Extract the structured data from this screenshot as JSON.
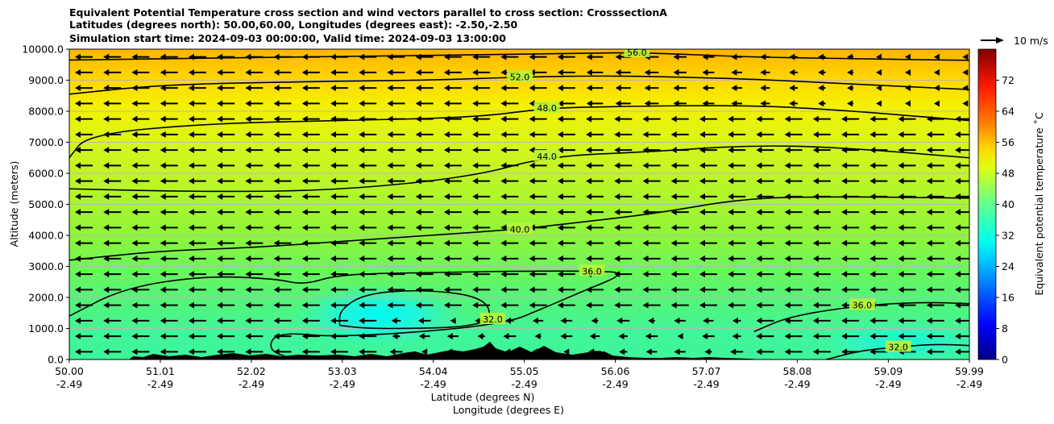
{
  "title": {
    "line1": "Equivalent Potential Temperature cross section and wind vectors parallel to cross section: CrosssectionA",
    "line2": "Latitudes (degrees north): 50.00,60.00, Longitudes (degrees east): -2.50,-2.50",
    "line3": "Simulation start time: 2024-09-03 00:00:00, Valid time: 2024-09-03 13:00:00"
  },
  "wind_key_label": "10 m/s",
  "colorbar": {
    "label": "Equivalent potential temperature ˚C",
    "ticks": [
      "0",
      "8",
      "16",
      "24",
      "32",
      "40",
      "48",
      "56",
      "64",
      "72"
    ],
    "range": [
      0,
      80
    ]
  },
  "chart_data": {
    "type": "heatmap",
    "title": "Equivalent Potential Temperature cross section and wind vectors parallel to cross section: CrosssectionA",
    "xlabel_lat": "Latitude (degrees N)",
    "xlabel_lon": "Longitude (degrees E)",
    "ylabel": "Altitude (meters)",
    "xlim": [
      50.0,
      59.99
    ],
    "ylim": [
      0,
      10000
    ],
    "y_ticks": [
      "0.0",
      "1000.0",
      "2000.0",
      "3000.0",
      "4000.0",
      "5000.0",
      "6000.0",
      "7000.0",
      "8000.0",
      "9000.0",
      "10000.0"
    ],
    "x_ticks": [
      {
        "lat": "50.00",
        "lon": "-2.49"
      },
      {
        "lat": "51.01",
        "lon": "-2.49"
      },
      {
        "lat": "52.02",
        "lon": "-2.49"
      },
      {
        "lat": "53.03",
        "lon": "-2.49"
      },
      {
        "lat": "54.04",
        "lon": "-2.49"
      },
      {
        "lat": "55.05",
        "lon": "-2.49"
      },
      {
        "lat": "56.06",
        "lon": "-2.49"
      },
      {
        "lat": "57.07",
        "lon": "-2.49"
      },
      {
        "lat": "58.08",
        "lon": "-2.49"
      },
      {
        "lat": "59.09",
        "lon": "-2.49"
      },
      {
        "lat": "59.99",
        "lon": "-2.49"
      }
    ],
    "horizontal_gridlines": true,
    "contour_levels": [
      32,
      36,
      40,
      44,
      48,
      52,
      56
    ],
    "contours": [
      {
        "level": 56,
        "label": "56.0",
        "points": [
          [
            50.0,
            9650
          ],
          [
            52.5,
            9750
          ],
          [
            55.5,
            9850
          ],
          [
            56.3,
            9900
          ],
          [
            57.5,
            9750
          ],
          [
            58.5,
            9700
          ],
          [
            59.99,
            9640
          ]
        ]
      },
      {
        "level": 52,
        "label": "52.0",
        "points": [
          [
            50.0,
            8550
          ],
          [
            51.0,
            8850
          ],
          [
            52.5,
            8950
          ],
          [
            54.0,
            9000
          ],
          [
            55.0,
            9100
          ],
          [
            56.0,
            9150
          ],
          [
            57.5,
            9050
          ],
          [
            58.5,
            8900
          ],
          [
            59.99,
            8700
          ]
        ]
      },
      {
        "level": 48,
        "label": "48.0",
        "points": [
          [
            50.0,
            6500
          ],
          [
            50.2,
            7250
          ],
          [
            51.5,
            7600
          ],
          [
            53.0,
            7700
          ],
          [
            54.5,
            7800
          ],
          [
            55.3,
            8100
          ],
          [
            56.0,
            8150
          ],
          [
            57.5,
            8200
          ],
          [
            58.5,
            8050
          ],
          [
            59.99,
            7700
          ]
        ]
      },
      {
        "level": 44,
        "label": "44.0",
        "points": [
          [
            50.0,
            5500
          ],
          [
            51.5,
            5400
          ],
          [
            53.0,
            5450
          ],
          [
            54.5,
            5900
          ],
          [
            55.3,
            6550
          ],
          [
            56.5,
            6700
          ],
          [
            57.5,
            6900
          ],
          [
            58.5,
            6850
          ],
          [
            59.99,
            6500
          ]
        ]
      },
      {
        "level": 40,
        "label": "40.0",
        "points": [
          [
            50.0,
            3200
          ],
          [
            51.0,
            3500
          ],
          [
            52.0,
            3600
          ],
          [
            53.0,
            3800
          ],
          [
            54.0,
            4000
          ],
          [
            55.0,
            4200
          ],
          [
            55.6,
            4400
          ],
          [
            56.5,
            4700
          ],
          [
            57.5,
            5200
          ],
          [
            58.5,
            5250
          ],
          [
            59.99,
            5200
          ]
        ]
      },
      {
        "level": 36,
        "label": "36.0",
        "points": [
          [
            50.0,
            1400
          ],
          [
            50.6,
            2300
          ],
          [
            51.5,
            2700
          ],
          [
            52.3,
            2600
          ],
          [
            52.6,
            2400
          ],
          [
            53.0,
            2750
          ],
          [
            54.0,
            2800
          ],
          [
            55.0,
            2850
          ],
          [
            55.8,
            2850
          ],
          [
            56.2,
            2800
          ],
          [
            55.7,
            2200
          ],
          [
            55.3,
            1700
          ],
          [
            54.8,
            1100
          ],
          [
            53.0,
            700
          ],
          [
            52.3,
            900
          ],
          [
            52.2,
            300
          ],
          [
            52.5,
            0
          ]
        ]
      },
      {
        "level": 32,
        "label": "32.0",
        "points": [
          [
            53.0,
            1100
          ],
          [
            53.0,
            1600
          ],
          [
            53.3,
            2150
          ],
          [
            54.0,
            2250
          ],
          [
            54.6,
            2000
          ],
          [
            54.7,
            1300
          ],
          [
            54.4,
            1050
          ],
          [
            53.8,
            1000
          ],
          [
            53.3,
            1000
          ],
          [
            53.0,
            1100
          ]
        ]
      },
      {
        "level": 32,
        "label": "32.0",
        "points": [
          [
            58.4,
            0
          ],
          [
            58.8,
            300
          ],
          [
            59.2,
            400
          ],
          [
            59.6,
            500
          ],
          [
            59.99,
            450
          ]
        ]
      },
      {
        "level": 36,
        "label": "36.0",
        "points": [
          [
            57.6,
            900
          ],
          [
            58.0,
            1400
          ],
          [
            58.8,
            1750
          ],
          [
            59.5,
            1850
          ],
          [
            59.99,
            1800
          ]
        ]
      }
    ]
  }
}
